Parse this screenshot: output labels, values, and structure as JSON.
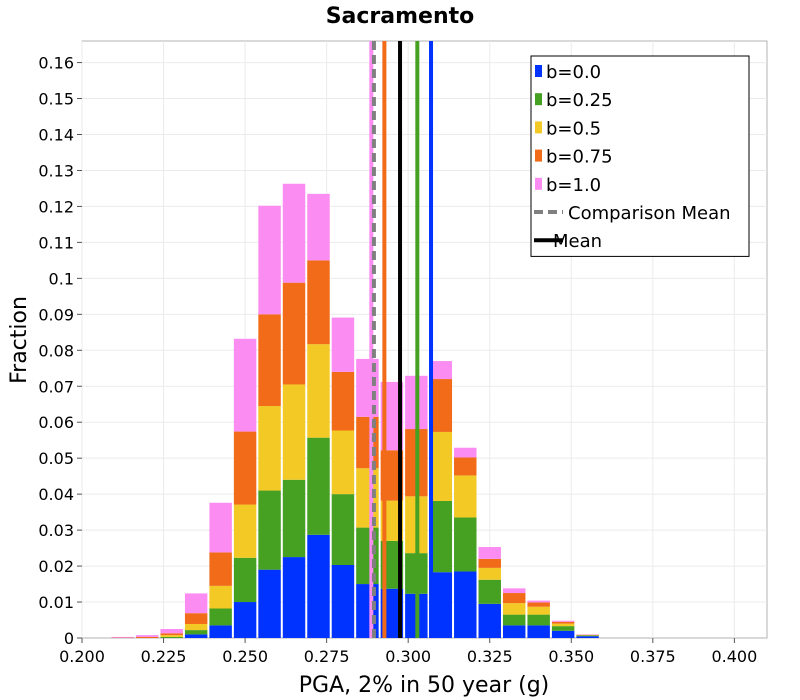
{
  "chart_data": {
    "type": "bar",
    "stacked": true,
    "title": "Sacramento",
    "xlabel": "PGA, 2% in 50 year (g)",
    "ylabel": "Fraction",
    "xlim": [
      0.2,
      0.41
    ],
    "ylim": [
      0,
      0.166
    ],
    "grid": true,
    "legend_position": "top-right",
    "x_ticks": [
      "0.200",
      "0.225",
      "0.250",
      "0.275",
      "0.300",
      "0.325",
      "0.350",
      "0.375",
      "0.400"
    ],
    "y_ticks": [
      "0",
      "0.01",
      "0.02",
      "0.03",
      "0.04",
      "0.05",
      "0.06",
      "0.07",
      "0.08",
      "0.09",
      "0.1",
      "0.11",
      "0.12",
      "0.13",
      "0.14",
      "0.15",
      "0.16"
    ],
    "bin_width": 0.0075,
    "x": [
      0.2125,
      0.22,
      0.2275,
      0.235,
      0.2425,
      0.25,
      0.2575,
      0.265,
      0.2725,
      0.28,
      0.2875,
      0.295,
      0.3025,
      0.31,
      0.3175,
      0.325,
      0.3325,
      0.34,
      0.3475,
      0.355,
      0.3625,
      0.37,
      0.3775,
      0.385,
      0.3925,
      0.4,
      0.4075
    ],
    "series": [
      {
        "name": "b=0.0",
        "color": "#0033ff",
        "values": [
          0,
          0,
          0,
          0.001,
          0.0035,
          0.01,
          0.019,
          0.0225,
          0.0287,
          0.0203,
          0.015,
          0.0137,
          0.0123,
          0.0183,
          0.0185,
          0.0095,
          0.0035,
          0.0035,
          0.002,
          0.0005,
          0,
          0,
          0,
          0,
          0,
          0,
          0
        ]
      },
      {
        "name": "b=0.25",
        "color": "#46a022",
        "values": [
          0,
          0,
          0.0003,
          0.0012,
          0.0047,
          0.0123,
          0.022,
          0.0215,
          0.027,
          0.0197,
          0.0157,
          0.0133,
          0.0113,
          0.0198,
          0.015,
          0.0067,
          0.003,
          0.003,
          0.0013,
          0.0002,
          0,
          0,
          0,
          0,
          0,
          0,
          0
        ]
      },
      {
        "name": "b=0.5",
        "color": "#f2c925",
        "values": [
          0,
          0,
          0.0005,
          0.0017,
          0.0063,
          0.0148,
          0.0235,
          0.0265,
          0.026,
          0.0177,
          0.0165,
          0.0112,
          0.0158,
          0.0192,
          0.0117,
          0.0033,
          0.0032,
          0.0022,
          0.0007,
          0.0001,
          0,
          0,
          0,
          0,
          0,
          0,
          0
        ]
      },
      {
        "name": "b=0.75",
        "color": "#f16b18",
        "values": [
          0.0001,
          0.0003,
          0.0005,
          0.003,
          0.0093,
          0.0203,
          0.0255,
          0.0283,
          0.0233,
          0.0163,
          0.0143,
          0.014,
          0.0187,
          0.0147,
          0.005,
          0.0025,
          0.0028,
          0.0012,
          0.0005,
          0.0001,
          0,
          0,
          0,
          0,
          0,
          0,
          0
        ]
      },
      {
        "name": "b=1.0",
        "color": "#fa8cf2",
        "values": [
          0.0002,
          0.0005,
          0.0012,
          0.0055,
          0.0138,
          0.0258,
          0.0302,
          0.0275,
          0.0185,
          0.0151,
          0.0161,
          0.019,
          0.0148,
          0.005,
          0.0027,
          0.0033,
          0.0013,
          0.0005,
          0.0003,
          0.0001,
          0,
          0,
          0,
          0,
          0,
          0,
          0
        ]
      }
    ],
    "reference_lines": [
      {
        "name": "Comparison Mean",
        "x": 0.2895,
        "color": "#808080",
        "style": "dashed"
      },
      {
        "name": "Mean",
        "x": 0.2975,
        "color": "#000000",
        "style": "solid"
      },
      {
        "name": "b=1.0 mean",
        "x": 0.2887,
        "color": "#fa8cf2",
        "style": "solid"
      },
      {
        "name": "b=0.75 mean",
        "x": 0.2927,
        "color": "#f16b18",
        "style": "solid"
      },
      {
        "name": "b=0.25 mean",
        "x": 0.3028,
        "color": "#46a022",
        "style": "solid"
      },
      {
        "name": "b=0.0 mean",
        "x": 0.307,
        "color": "#0033ff",
        "style": "solid"
      }
    ],
    "legend": [
      {
        "label": "b=0.0",
        "color": "#0033ff",
        "kind": "box"
      },
      {
        "label": "b=0.25",
        "color": "#46a022",
        "kind": "box"
      },
      {
        "label": "b=0.5",
        "color": "#f2c925",
        "kind": "box"
      },
      {
        "label": "b=0.75",
        "color": "#f16b18",
        "kind": "box"
      },
      {
        "label": "b=1.0",
        "color": "#fa8cf2",
        "kind": "box"
      },
      {
        "label": "Comparison Mean",
        "color": "#808080",
        "kind": "dashed"
      },
      {
        "label": "Mean",
        "color": "#000000",
        "kind": "solid"
      }
    ]
  }
}
